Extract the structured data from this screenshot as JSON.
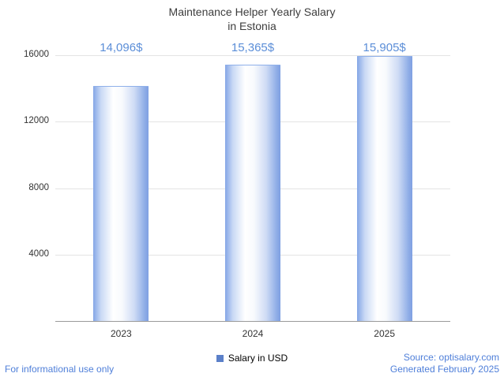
{
  "title_line1": "Maintenance Helper Yearly Salary",
  "title_line2": "in Estonia",
  "chart_data": {
    "type": "bar",
    "title": "Maintenance Helper Yearly Salary in Estonia",
    "categories": [
      "2023",
      "2024",
      "2025"
    ],
    "values": [
      14096,
      15365,
      15905
    ],
    "value_labels": [
      "14,096$",
      "15,365$",
      "15,905$"
    ],
    "xlabel": "",
    "ylabel": "",
    "ylim": [
      0,
      16000
    ],
    "yticks": [
      4000,
      8000,
      12000,
      16000
    ],
    "grid": true,
    "legend_position": "bottom"
  },
  "legend": {
    "label": "Salary in USD",
    "marker_color": "#5b80c9"
  },
  "colors": {
    "value_label_blue": "#5b8ed8",
    "footer_blue": "#4f7fd9",
    "bar_edge_blue": "#84a6e6",
    "gridline": "#e4e4e4",
    "axis_line": "#9a9a9a",
    "title_text": "#3d3d3d"
  },
  "footer": {
    "left": "For informational use only",
    "source": "Source: optisalary.com",
    "generated": "Generated February 2025"
  }
}
